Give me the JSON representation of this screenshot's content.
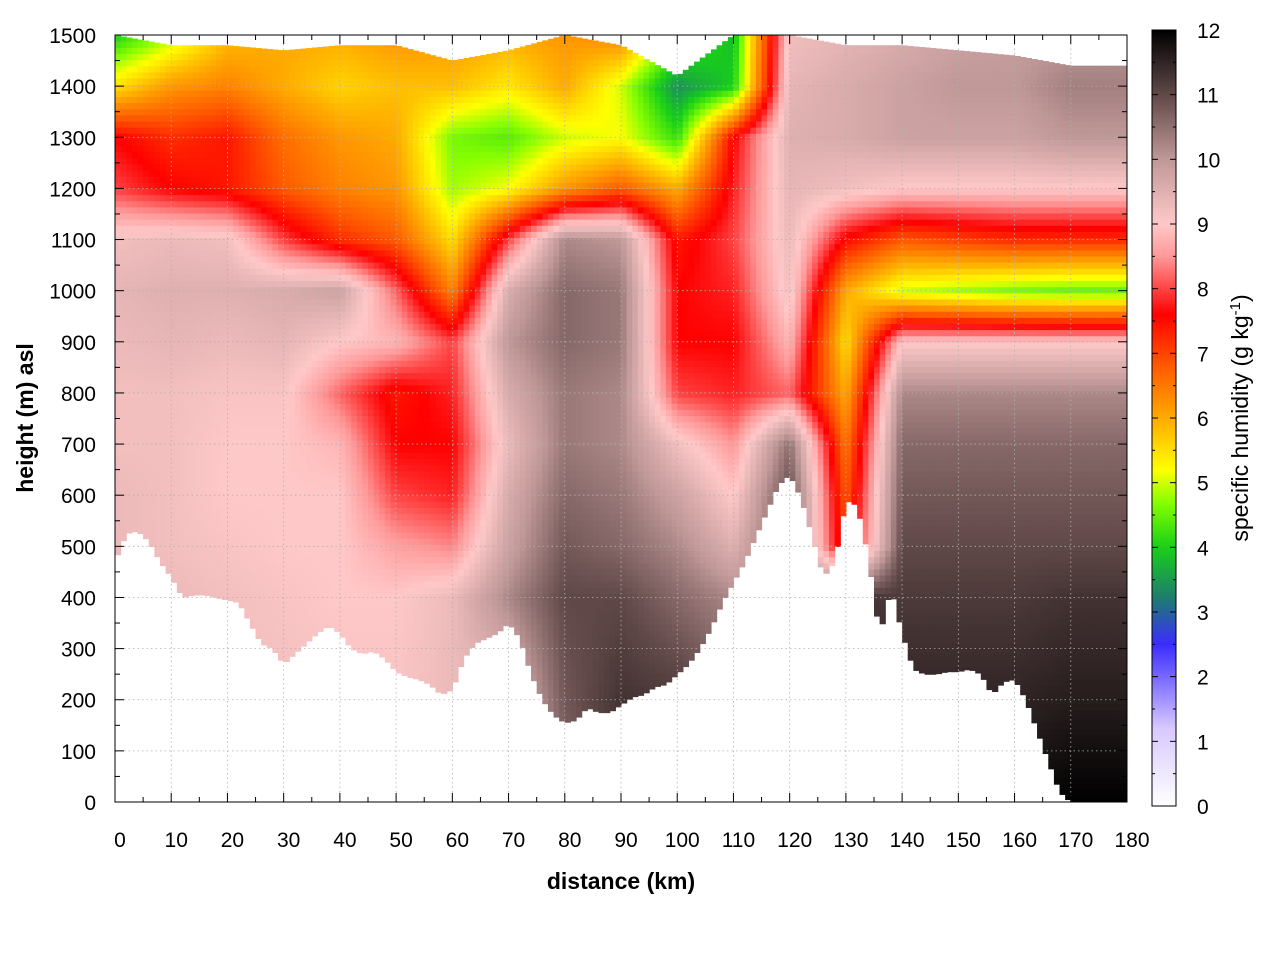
{
  "chart_data": {
    "type": "heatmap",
    "title": "",
    "xlabel": "distance (km)",
    "ylabel": "height (m) asl",
    "xlim": [
      0,
      180
    ],
    "ylim": [
      0,
      1500
    ],
    "x_ticks": [
      0,
      10,
      20,
      30,
      40,
      50,
      60,
      70,
      80,
      90,
      100,
      110,
      120,
      130,
      140,
      150,
      160,
      170,
      180
    ],
    "y_ticks": [
      0,
      100,
      200,
      300,
      400,
      500,
      600,
      700,
      800,
      900,
      1000,
      1100,
      1200,
      1300,
      1400,
      1500
    ],
    "grid": true,
    "colorbar": {
      "label_prefix": "specific humidity (g kg",
      "label_exponent": "-1",
      "label_suffix": ")",
      "range": [
        0,
        12
      ],
      "ticks": [
        0,
        1,
        2,
        3,
        4,
        5,
        6,
        7,
        8,
        9,
        10,
        11,
        12
      ],
      "stops": [
        {
          "v": 0,
          "color": "#ffffff"
        },
        {
          "v": 1.2,
          "color": "#d8c8ff"
        },
        {
          "v": 2.5,
          "color": "#3a2cff"
        },
        {
          "v": 3.2,
          "color": "#1e7a70"
        },
        {
          "v": 4.0,
          "color": "#18d018"
        },
        {
          "v": 4.7,
          "color": "#88ff00"
        },
        {
          "v": 5.2,
          "color": "#ffff00"
        },
        {
          "v": 6.0,
          "color": "#ffaa00"
        },
        {
          "v": 6.8,
          "color": "#ff5a00"
        },
        {
          "v": 7.6,
          "color": "#ff0000"
        },
        {
          "v": 8.5,
          "color": "#ff9898"
        },
        {
          "v": 9.0,
          "color": "#ffc8c8"
        },
        {
          "v": 10.0,
          "color": "#c09898"
        },
        {
          "v": 11.0,
          "color": "#604848"
        },
        {
          "v": 12.0,
          "color": "#000000"
        }
      ]
    },
    "terrain": {
      "x": [
        0,
        2,
        4,
        6,
        8,
        10,
        12,
        14,
        16,
        18,
        20,
        22,
        24,
        26,
        28,
        30,
        32,
        34,
        36,
        38,
        40,
        42,
        44,
        46,
        48,
        50,
        52,
        54,
        56,
        58,
        60,
        62,
        64,
        66,
        68,
        70,
        72,
        74,
        76,
        78,
        80,
        82,
        84,
        86,
        88,
        90,
        92,
        94,
        96,
        98,
        100,
        102,
        104,
        106,
        108,
        110,
        112,
        114,
        116,
        118,
        120,
        122,
        124,
        126,
        128,
        130,
        132,
        134,
        136,
        138,
        140,
        142,
        144,
        146,
        148,
        150,
        152,
        154,
        156,
        158,
        160,
        162,
        164,
        166,
        168,
        170,
        172,
        174,
        176,
        178,
        180
      ],
      "height": [
        470,
        525,
        530,
        510,
        470,
        440,
        400,
        405,
        405,
        400,
        395,
        390,
        350,
        310,
        300,
        270,
        290,
        310,
        330,
        345,
        330,
        300,
        290,
        295,
        280,
        255,
        245,
        240,
        230,
        210,
        220,
        280,
        310,
        320,
        330,
        350,
        320,
        250,
        200,
        170,
        155,
        160,
        185,
        175,
        175,
        190,
        205,
        210,
        225,
        230,
        250,
        270,
        300,
        340,
        390,
        430,
        470,
        520,
        570,
        620,
        640,
        595,
        520,
        440,
        470,
        590,
        580,
        480,
        325,
        420,
        330,
        260,
        250,
        250,
        255,
        255,
        260,
        250,
        210,
        235,
        240,
        200,
        140,
        80,
        20,
        0,
        0,
        0,
        0,
        0,
        0
      ]
    },
    "profile_x": [
      0,
      10,
      20,
      30,
      40,
      50,
      60,
      70,
      80,
      90,
      100,
      110,
      120,
      130,
      140,
      150,
      160,
      170,
      180
    ],
    "profile_height": [
      0,
      200,
      400,
      500,
      600,
      700,
      800,
      900,
      1000,
      1100,
      1200,
      1300,
      1400,
      1500
    ],
    "profile_q": [
      [
        11.5,
        9.8,
        9.5,
        9.4,
        9.3,
        9.3,
        9.4,
        9.4,
        10.5,
        11.2,
        11.5,
        11.0,
        10.5,
        11.8,
        11.8,
        11.8,
        11.8,
        12.0,
        12.0
      ],
      [
        11.0,
        9.5,
        9.3,
        9.2,
        9.1,
        9.1,
        9.3,
        9.3,
        10.8,
        11.3,
        11.2,
        10.8,
        10.3,
        11.6,
        11.5,
        11.5,
        11.5,
        11.6,
        11.6
      ],
      [
        9.5,
        9.3,
        9.2,
        9.1,
        9.0,
        9.0,
        9.3,
        10.2,
        11.0,
        11.0,
        10.6,
        10.2,
        10.0,
        11.3,
        11.2,
        11.2,
        11.2,
        11.3,
        11.3
      ],
      [
        9.3,
        9.2,
        9.1,
        9.0,
        9.0,
        8.6,
        8.4,
        9.8,
        10.8,
        10.6,
        10.2,
        9.5,
        11.0,
        7.0,
        11.0,
        11.0,
        11.0,
        11.0,
        11.0
      ],
      [
        9.3,
        9.2,
        9.0,
        9.0,
        9.0,
        8.0,
        7.8,
        9.6,
        10.6,
        10.4,
        9.8,
        9.0,
        11.0,
        6.8,
        10.8,
        10.8,
        10.8,
        10.8,
        10.8
      ],
      [
        9.2,
        9.2,
        9.0,
        9.0,
        8.8,
        7.6,
        7.6,
        9.3,
        10.4,
        10.2,
        9.2,
        8.5,
        10.5,
        6.5,
        10.6,
        10.6,
        10.6,
        10.6,
        10.6
      ],
      [
        9.2,
        9.2,
        9.1,
        9.1,
        8.2,
        7.4,
        7.8,
        9.6,
        10.4,
        10.2,
        8.0,
        7.8,
        8.2,
        6.0,
        10.2,
        10.2,
        10.2,
        10.2,
        10.2
      ],
      [
        9.3,
        9.4,
        9.3,
        9.4,
        9.0,
        8.8,
        8.0,
        10.0,
        10.6,
        10.4,
        7.6,
        7.6,
        8.8,
        5.5,
        9.0,
        9.0,
        9.0,
        9.0,
        9.0
      ],
      [
        9.4,
        9.5,
        9.5,
        9.6,
        9.8,
        8.2,
        6.4,
        9.6,
        10.6,
        10.4,
        7.6,
        7.8,
        9.2,
        6.0,
        5.0,
        4.8,
        4.6,
        4.5,
        4.5
      ],
      [
        9.2,
        9.3,
        9.2,
        8.0,
        7.2,
        6.8,
        5.5,
        8.0,
        10.2,
        10.0,
        7.4,
        8.0,
        9.3,
        7.5,
        6.8,
        7.0,
        7.2,
        7.2,
        7.2
      ],
      [
        8.0,
        7.6,
        7.4,
        6.8,
        6.4,
        6.2,
        4.8,
        5.2,
        6.2,
        6.8,
        6.0,
        7.8,
        9.4,
        9.2,
        9.0,
        9.0,
        9.0,
        9.0,
        9.0
      ],
      [
        7.6,
        7.2,
        7.4,
        6.6,
        6.2,
        6.0,
        4.6,
        4.4,
        5.0,
        5.2,
        4.2,
        7.6,
        9.5,
        9.6,
        9.8,
        9.8,
        9.8,
        10.0,
        10.0
      ],
      [
        5.5,
        6.2,
        6.4,
        6.0,
        5.6,
        5.8,
        5.8,
        5.4,
        6.0,
        5.0,
        3.4,
        4.0,
        9.4,
        9.6,
        9.8,
        10.0,
        10.0,
        10.3,
        10.3
      ],
      [
        4.0,
        4.8,
        5.8,
        6.0,
        6.0,
        6.2,
        6.2,
        6.0,
        6.2,
        6.4,
        4.6,
        3.8,
        9.2,
        9.4,
        9.6,
        9.8,
        9.9,
        10.0,
        10.0
      ]
    ],
    "top_edge_height": [
      1500,
      1480,
      1480,
      1470,
      1480,
      1480,
      1450,
      1470,
      1500,
      1480,
      1420,
      1500,
      1500,
      1480,
      1480,
      1470,
      1460,
      1440,
      1440
    ]
  }
}
